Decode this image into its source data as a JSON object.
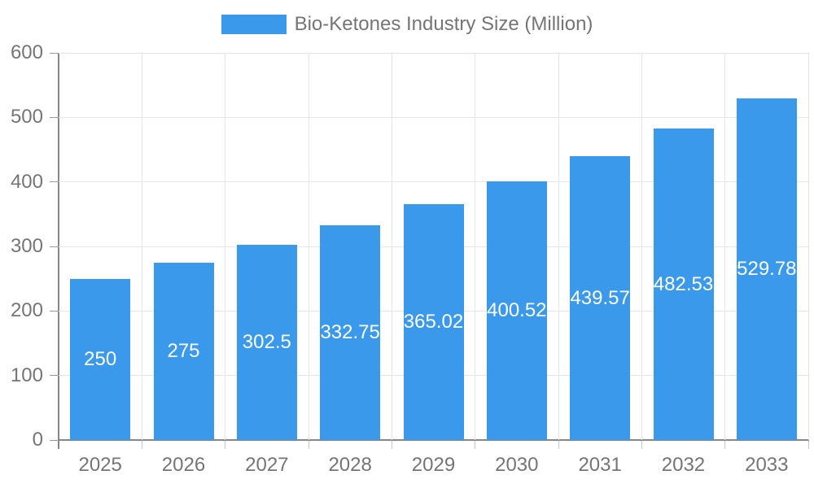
{
  "legend": {
    "label": "Bio-Ketones Industry Size (Million)"
  },
  "chart_data": {
    "type": "bar",
    "title": "Bio-Ketones Industry Size (Million)",
    "series_name": "Bio-Ketones Industry Size (Million)",
    "categories": [
      "2025",
      "2026",
      "2027",
      "2028",
      "2029",
      "2030",
      "2031",
      "2032",
      "2033"
    ],
    "values": [
      250,
      275,
      302.5,
      332.75,
      365.02,
      400.52,
      439.57,
      482.53,
      529.78
    ],
    "xlabel": "",
    "ylabel": "",
    "ylim": [
      0,
      600
    ],
    "y_ticks": [
      0,
      100,
      200,
      300,
      400,
      500,
      600
    ],
    "grid": true,
    "legend_position": "top-center",
    "value_labels_inside_bars": true,
    "colors": {
      "bar": "#3b99ec",
      "axis": "#878787",
      "grid": "#e6e6e6",
      "tick_y": "#9a9a9a",
      "tick_x": "#c6c6c6",
      "text": "#757575",
      "value_label": "#ffffff",
      "background": "#ffffff"
    }
  }
}
